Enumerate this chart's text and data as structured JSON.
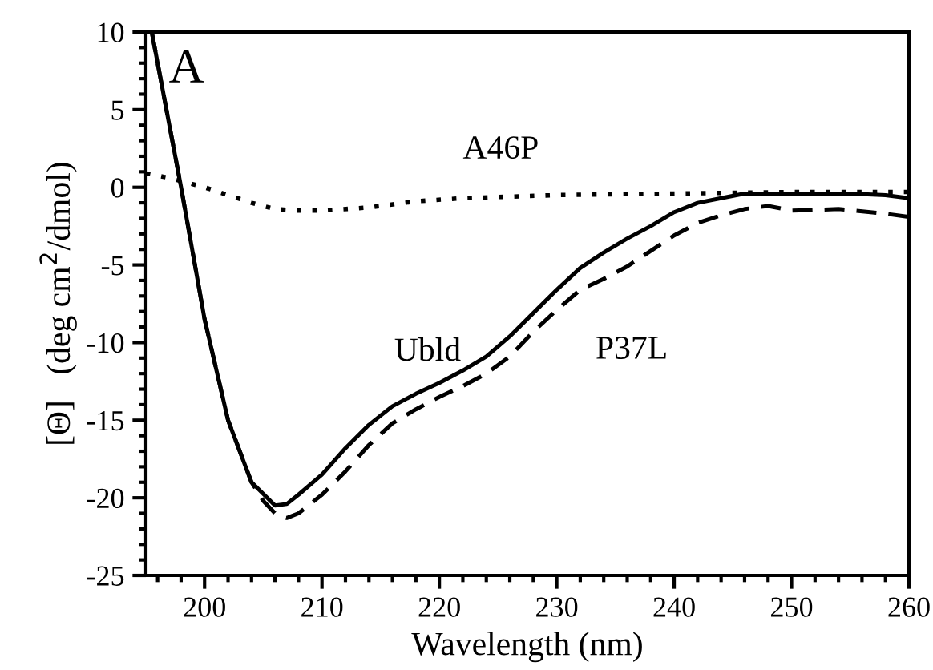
{
  "chart_data": {
    "type": "line",
    "xlabel": "Wavelength (nm)",
    "ylabel": "[Θ]   (deg cm$^{2}$/dmol)",
    "annotations": [
      "A"
    ],
    "xlim": [
      195,
      260
    ],
    "ylim": [
      -25,
      10
    ],
    "xticks": [
      200,
      210,
      220,
      230,
      240,
      250,
      260
    ],
    "yticks": [
      -25,
      -20,
      -15,
      -10,
      -5,
      0,
      5,
      10
    ],
    "grid": false,
    "legend": false,
    "series": [
      {
        "name": "Ubld",
        "color": "#000000",
        "line_style": "solid",
        "x": [
          195.5,
          196,
          198,
          200,
          202,
          204,
          206,
          207,
          208,
          210,
          212,
          214,
          216,
          218,
          220,
          222,
          224,
          226,
          228,
          230,
          232,
          234,
          236,
          238,
          240,
          242,
          244,
          246,
          250,
          255,
          258,
          260
        ],
        "values": [
          10,
          8,
          0,
          -8.5,
          -15,
          -19,
          -20.5,
          -20.4,
          -19.8,
          -18.5,
          -16.8,
          -15.3,
          -14.1,
          -13.3,
          -12.6,
          -11.8,
          -10.9,
          -9.6,
          -8.1,
          -6.6,
          -5.2,
          -4.2,
          -3.3,
          -2.5,
          -1.6,
          -1.0,
          -0.7,
          -0.4,
          -0.4,
          -0.4,
          -0.5,
          -0.7
        ]
      },
      {
        "name": "P37L",
        "color": "#000000",
        "line_style": "dashed",
        "x": [
          195.5,
          196,
          198,
          200,
          202,
          204,
          205,
          206,
          207,
          208,
          210,
          212,
          214,
          216,
          218,
          220,
          222,
          224,
          226,
          228,
          230,
          232,
          234,
          236,
          238,
          240,
          242,
          244,
          246,
          248,
          250,
          254,
          258,
          260
        ],
        "values": [
          10,
          8,
          0,
          -8.5,
          -15,
          -19,
          -20.2,
          -21.0,
          -21.3,
          -21.0,
          -19.8,
          -18.3,
          -16.6,
          -15.2,
          -14.3,
          -13.5,
          -12.8,
          -12.0,
          -10.9,
          -9.3,
          -7.9,
          -6.6,
          -5.9,
          -5.1,
          -4.1,
          -3.1,
          -2.3,
          -1.8,
          -1.4,
          -1.2,
          -1.5,
          -1.4,
          -1.7,
          -1.9
        ]
      },
      {
        "name": "A46P",
        "color": "#000000",
        "line_style": "dotted",
        "x": [
          195,
          197,
          200,
          202,
          204,
          206,
          208,
          210,
          214,
          218,
          222,
          230,
          240,
          250,
          260
        ],
        "values": [
          0.9,
          0.6,
          0,
          -0.5,
          -1.0,
          -1.4,
          -1.5,
          -1.5,
          -1.3,
          -0.9,
          -0.7,
          -0.5,
          -0.4,
          -0.3,
          -0.3
        ]
      }
    ]
  }
}
